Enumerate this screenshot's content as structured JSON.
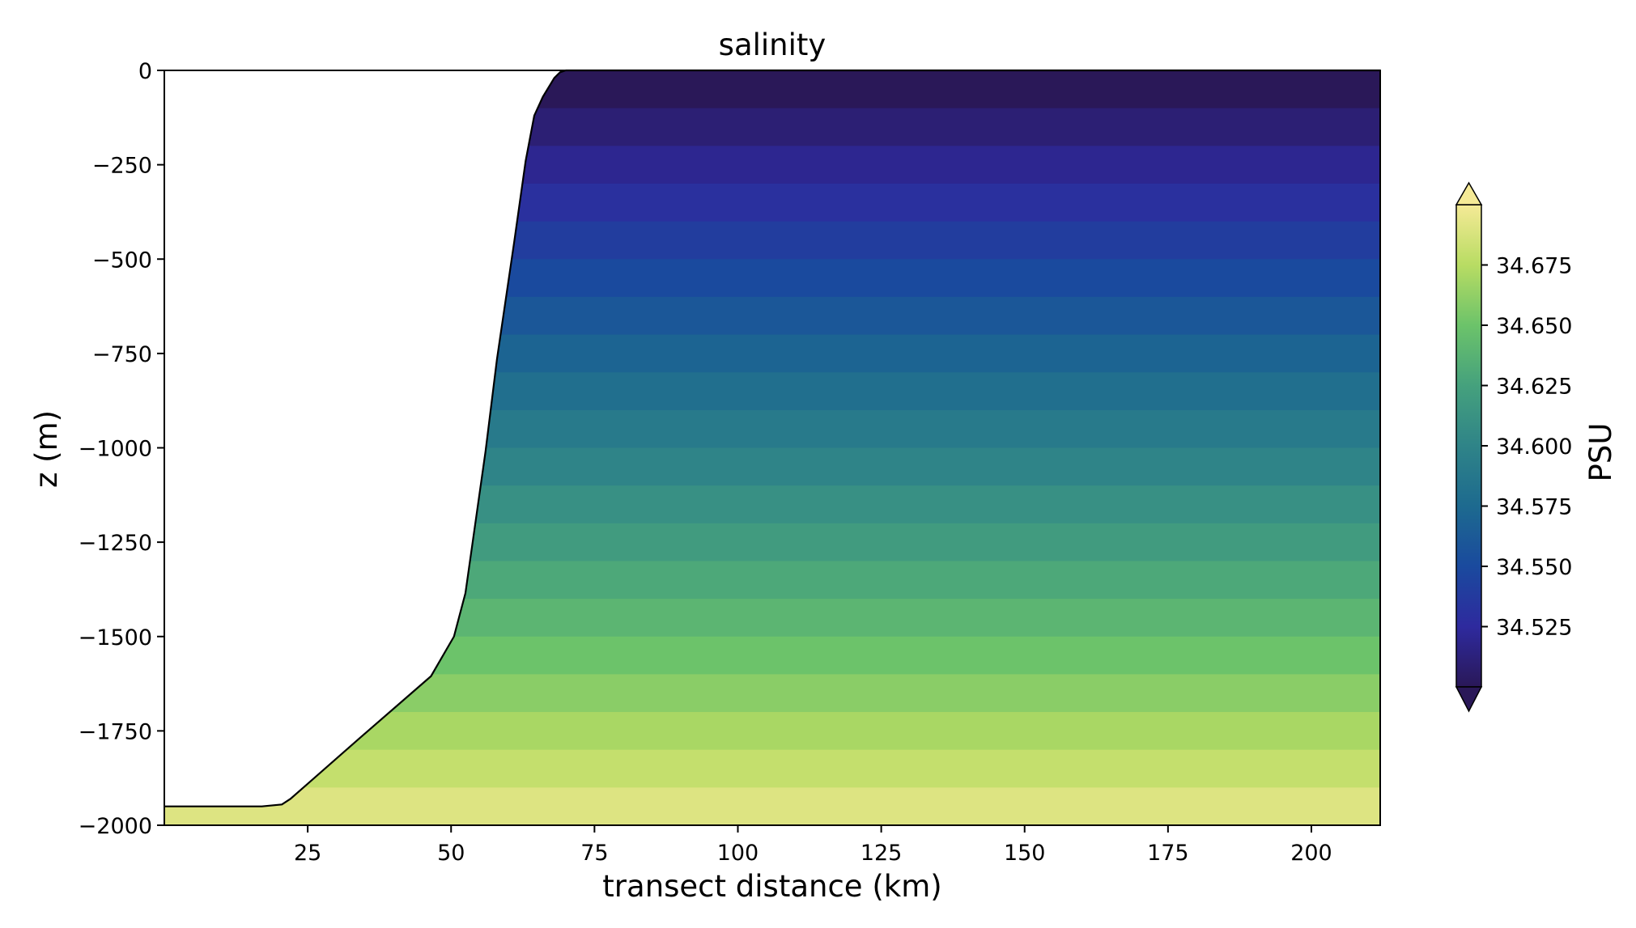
{
  "chart_data": {
    "type": "heatmap",
    "title": "salinity",
    "xlabel": "transect distance (km)",
    "ylabel": "z (m)",
    "xlim": [
      0,
      212
    ],
    "ylim": [
      -2000,
      0
    ],
    "xticks": [
      25,
      50,
      75,
      100,
      125,
      150,
      175,
      200
    ],
    "yticks": [
      0,
      -250,
      -500,
      -750,
      -1000,
      -1250,
      -1500,
      -1750,
      -2000
    ],
    "colorbar": {
      "label": "PSU",
      "ticks": [
        34.525,
        34.55,
        34.575,
        34.6,
        34.625,
        34.65,
        34.675
      ],
      "range": [
        34.5,
        34.7
      ],
      "extend": "both",
      "colormap": [
        "#2a1858",
        "#2e2a9e",
        "#1a4a9e",
        "#1d6a8f",
        "#2f8488",
        "#45a17d",
        "#6cc36a",
        "#b8dc63",
        "#f5ea96"
      ]
    },
    "levels": [
      {
        "z_top": 0,
        "z_bottom": -100,
        "salinity": 34.5
      },
      {
        "z_top": -100,
        "z_bottom": -200,
        "salinity": 34.51
      },
      {
        "z_top": -200,
        "z_bottom": -300,
        "salinity": 34.52
      },
      {
        "z_top": -300,
        "z_bottom": -400,
        "salinity": 34.53
      },
      {
        "z_top": -400,
        "z_bottom": -500,
        "salinity": 34.54
      },
      {
        "z_top": -500,
        "z_bottom": -600,
        "salinity": 34.55
      },
      {
        "z_top": -600,
        "z_bottom": -700,
        "salinity": 34.56
      },
      {
        "z_top": -700,
        "z_bottom": -800,
        "salinity": 34.57
      },
      {
        "z_top": -800,
        "z_bottom": -900,
        "salinity": 34.58
      },
      {
        "z_top": -900,
        "z_bottom": -1000,
        "salinity": 34.59
      },
      {
        "z_top": -1000,
        "z_bottom": -1100,
        "salinity": 34.6
      },
      {
        "z_top": -1100,
        "z_bottom": -1200,
        "salinity": 34.61
      },
      {
        "z_top": -1200,
        "z_bottom": -1300,
        "salinity": 34.62
      },
      {
        "z_top": -1300,
        "z_bottom": -1400,
        "salinity": 34.63
      },
      {
        "z_top": -1400,
        "z_bottom": -1500,
        "salinity": 34.64
      },
      {
        "z_top": -1500,
        "z_bottom": -1600,
        "salinity": 34.65
      },
      {
        "z_top": -1600,
        "z_bottom": -1700,
        "salinity": 34.66
      },
      {
        "z_top": -1700,
        "z_bottom": -1800,
        "salinity": 34.67
      },
      {
        "z_top": -1800,
        "z_bottom": -1900,
        "salinity": 34.68
      },
      {
        "z_top": -1900,
        "z_bottom": -2000,
        "salinity": 34.69
      }
    ],
    "bathymetry": {
      "x": [
        0,
        17,
        20.5,
        22,
        34,
        46.5,
        50.5,
        52.5,
        56,
        58,
        61,
        63,
        64.5,
        66,
        68,
        69,
        70,
        212
      ],
      "z": [
        -1950,
        -1950,
        -1945,
        -1930,
        -1770,
        -1605,
        -1500,
        -1385,
        -1010,
        -765,
        -455,
        -240,
        -120,
        -70,
        -20,
        -5,
        0,
        0
      ]
    }
  }
}
